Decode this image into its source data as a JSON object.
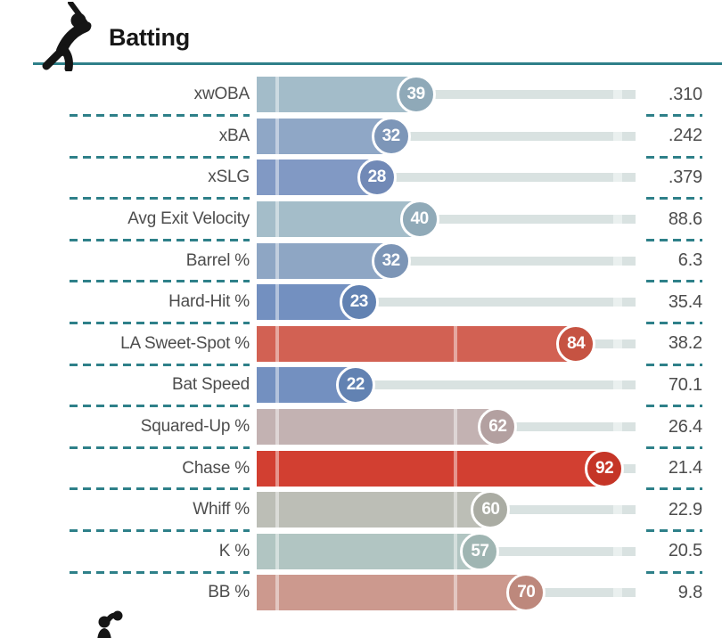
{
  "header": {
    "title": "Batting",
    "icon": "batter-silhouette-icon"
  },
  "colors": {
    "accent_teal": "#2e8089",
    "track": "#d9e2e1",
    "track_tick": "#eaf0ef",
    "label_text": "#4d4d4d",
    "value_text": "#4d4d4d",
    "title_text": "#161616",
    "icon_black": "#151515",
    "badge_ring": "#ffffff"
  },
  "footer": {
    "icon": "fielder-silhouette-icon"
  },
  "chart_data": {
    "type": "bar",
    "title": "Batting",
    "subtitle": "",
    "xlabel": "percentile",
    "ylabel": "",
    "axis_range": [
      0,
      100
    ],
    "grid": "ticks at 0 and 50 inside bars, tick near 95 on track",
    "legend_position": "none",
    "orientation": "horizontal",
    "rows": [
      {
        "label": "xwOBA",
        "percentile": 39,
        "value": ".310",
        "bar_color": "#a3bcc9",
        "badge_color": "#8fa9b8"
      },
      {
        "label": "xBA",
        "percentile": 32,
        "value": ".242",
        "bar_color": "#8fa7c6",
        "badge_color": "#7d96b8"
      },
      {
        "label": "xSLG",
        "percentile": 28,
        "value": ".379",
        "bar_color": "#8199c4",
        "badge_color": "#7189b6"
      },
      {
        "label": "Avg Exit Velocity",
        "percentile": 40,
        "value": "88.6",
        "bar_color": "#a4bdc9",
        "badge_color": "#90aab8"
      },
      {
        "label": "Barrel %",
        "percentile": 32,
        "value": "6.3",
        "bar_color": "#8ea6c4",
        "badge_color": "#7c95b6"
      },
      {
        "label": "Hard-Hit %",
        "percentile": 23,
        "value": "35.4",
        "bar_color": "#7390c0",
        "badge_color": "#6282b2"
      },
      {
        "label": "LA Sweet-Spot %",
        "percentile": 84,
        "value": "38.2",
        "bar_color": "#d26153",
        "badge_color": "#c65342"
      },
      {
        "label": "Bat Speed",
        "percentile": 22,
        "value": "70.1",
        "bar_color": "#7390c0",
        "badge_color": "#6282b2"
      },
      {
        "label": "Squared-Up %",
        "percentile": 62,
        "value": "26.4",
        "bar_color": "#c3b2b2",
        "badge_color": "#b3a0a0"
      },
      {
        "label": "Chase %",
        "percentile": 92,
        "value": "21.4",
        "bar_color": "#d23f31",
        "badge_color": "#c53527"
      },
      {
        "label": "Whiff %",
        "percentile": 60,
        "value": "22.9",
        "bar_color": "#bcbeb6",
        "badge_color": "#aaaca3"
      },
      {
        "label": "K %",
        "percentile": 57,
        "value": "20.5",
        "bar_color": "#b1c5c2",
        "badge_color": "#9fb5b2"
      },
      {
        "label": "BB %",
        "percentile": 70,
        "value": "9.8",
        "bar_color": "#cc998e",
        "badge_color": "#bd887c"
      }
    ]
  }
}
